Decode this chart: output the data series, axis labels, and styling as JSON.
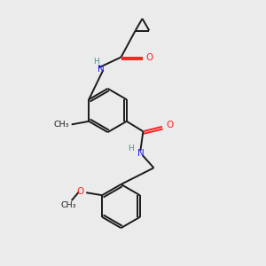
{
  "background_color": "#ebebeb",
  "bond_color": "#1a1a1a",
  "N_color": "#2020ff",
  "NH_color": "#4a9090",
  "O_color": "#ff2020",
  "text_color": "#1a1a1a",
  "bond_width": 1.4,
  "figsize": [
    3.0,
    3.0
  ],
  "dpi": 100,
  "xlim": [
    0,
    10
  ],
  "ylim": [
    0,
    10
  ]
}
